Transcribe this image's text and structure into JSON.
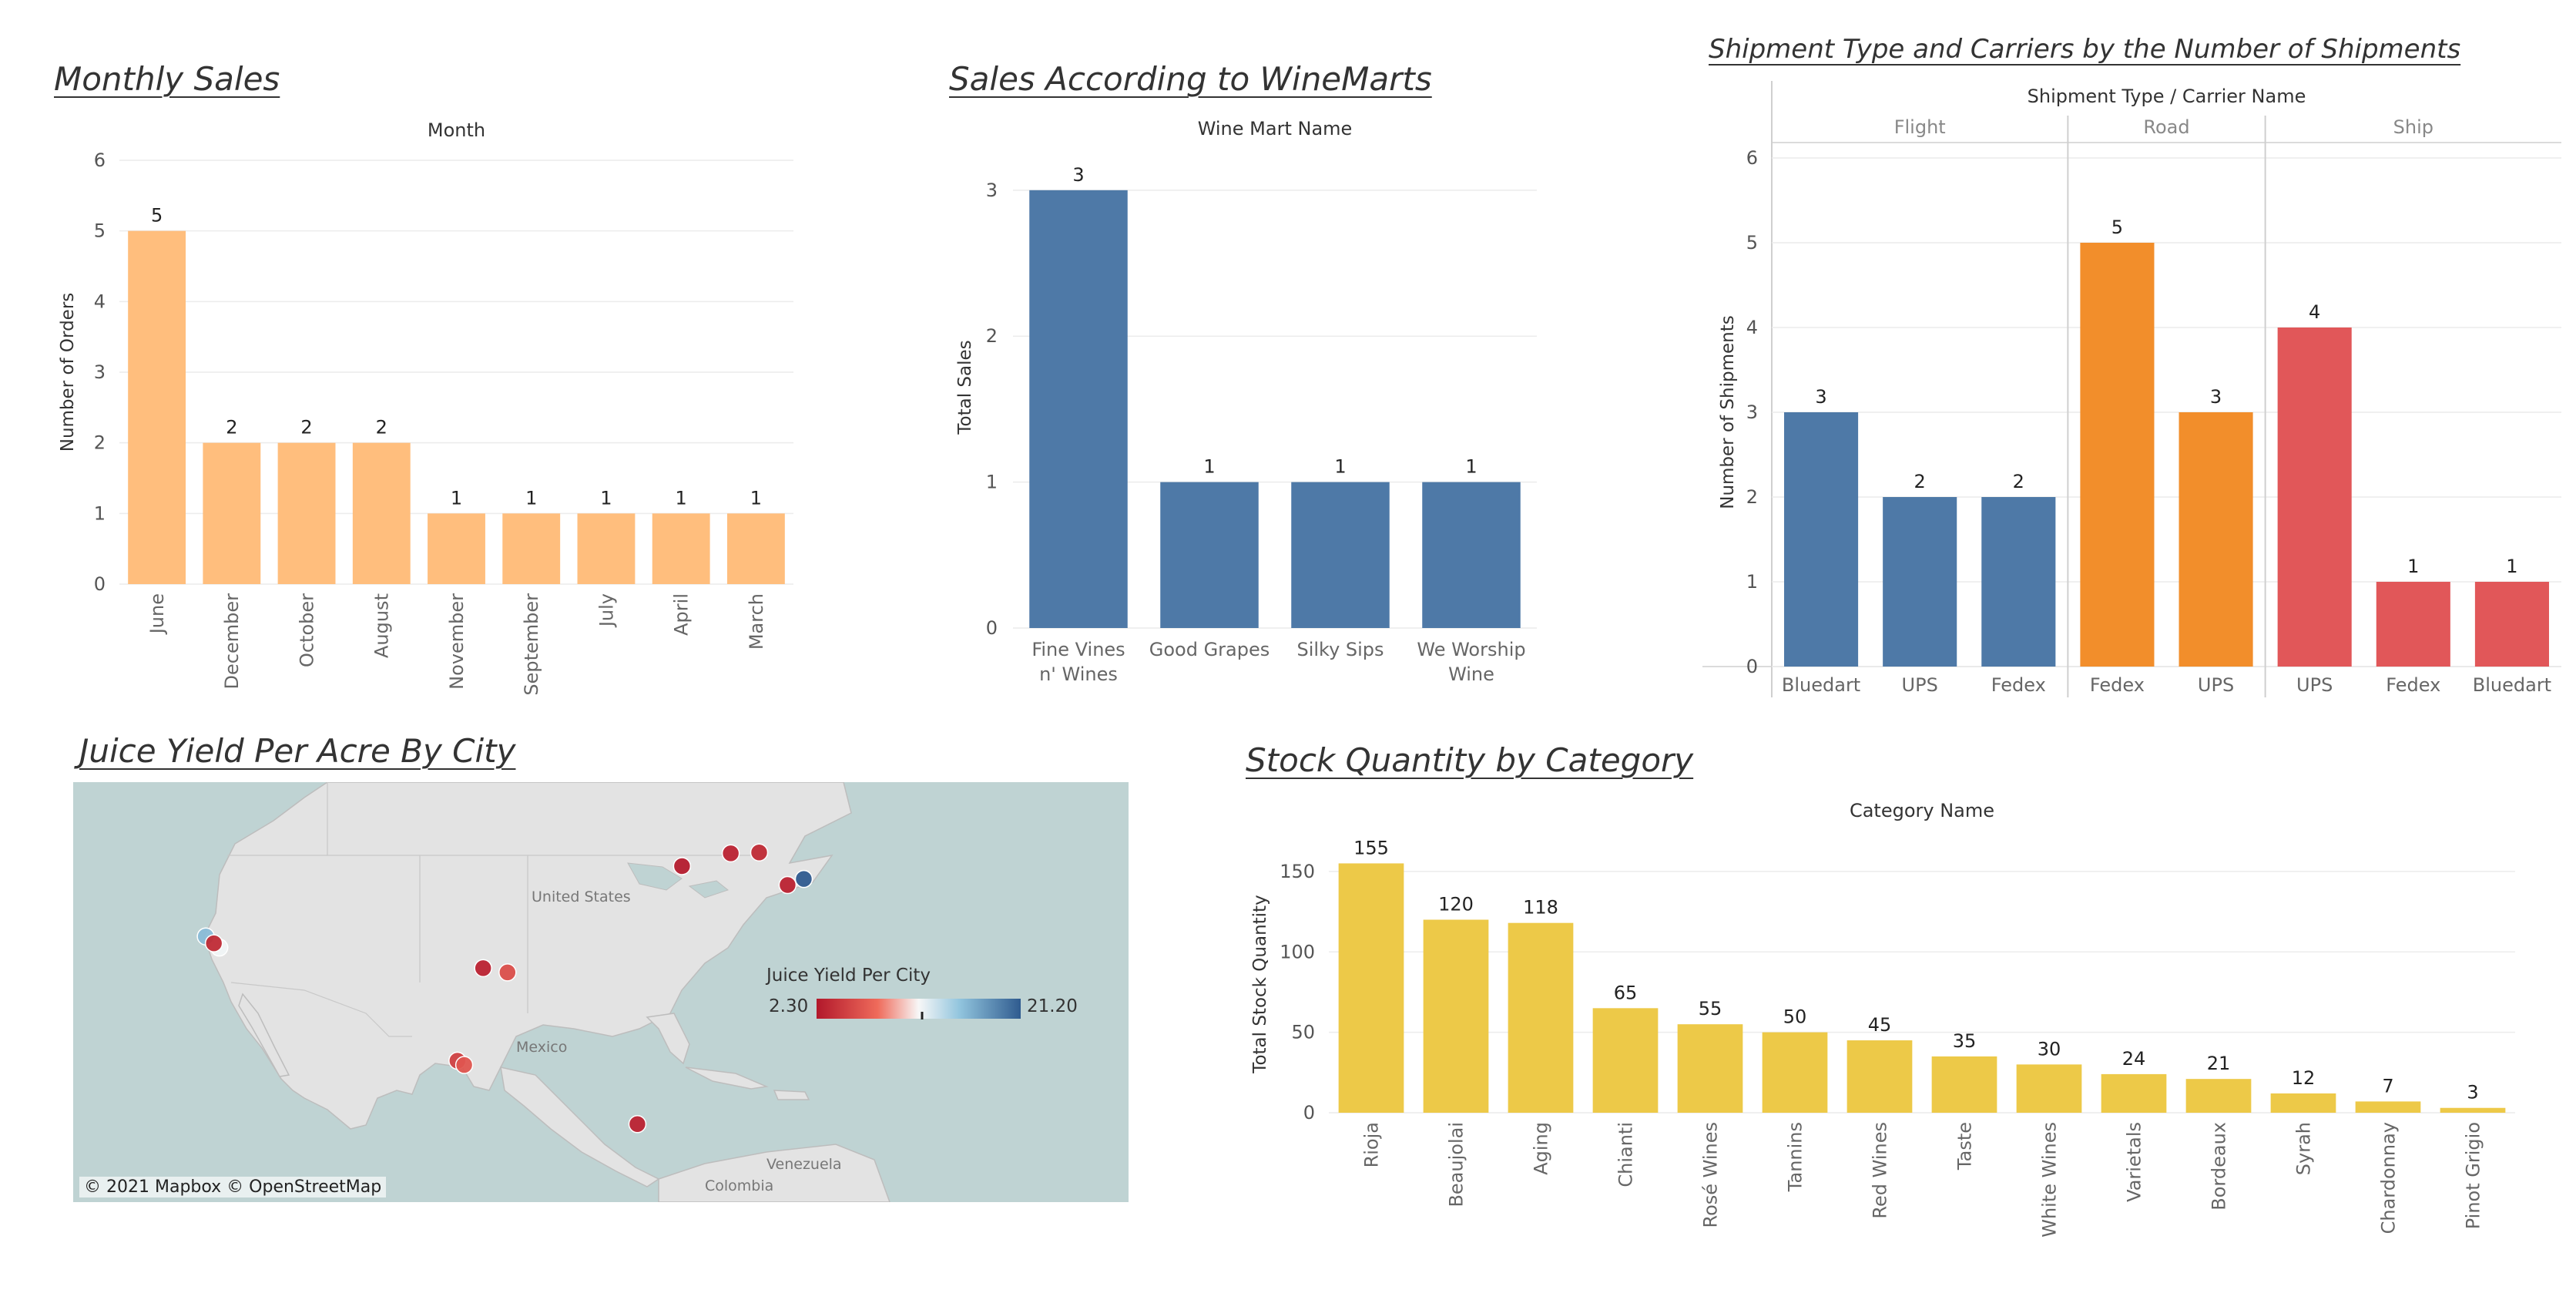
{
  "titles": {
    "monthly": "Monthly Sales",
    "winemarts": "Sales According to WineMarts",
    "shipment": "Shipment Type and Carriers by the Number of Shipments",
    "juice": "Juice Yield Per Acre By City",
    "stock": "Stock Quantity by Category"
  },
  "colors": {
    "orange_light": "#ffbe7d",
    "blue": "#4e79a7",
    "orange": "#f28e2b",
    "red": "#e15759",
    "yellow": "#edc948",
    "sea": "#bfd3d3",
    "land": "#e3e3e3"
  },
  "map": {
    "attribution": "© 2021 Mapbox © OpenStreetMap",
    "labels": [
      "United States",
      "Mexico",
      "Venezuela",
      "Colombia"
    ],
    "legend_title": "Juice Yield Per City",
    "legend_min": "2.30",
    "legend_max": "21.20"
  },
  "chart_data": [
    {
      "id": "monthly",
      "type": "bar",
      "title": "Monthly Sales",
      "header": "Month",
      "ylabel": "Number of Orders",
      "categories": [
        "June",
        "December",
        "October",
        "August",
        "November",
        "September",
        "July",
        "April",
        "March"
      ],
      "values": [
        5,
        2,
        2,
        2,
        1,
        1,
        1,
        1,
        1
      ],
      "ylim": [
        0,
        6
      ],
      "yticks": [
        0,
        1,
        2,
        3,
        4,
        5,
        6
      ],
      "color": "#ffbe7d"
    },
    {
      "id": "winemarts",
      "type": "bar",
      "title": "Sales According to WineMarts",
      "header": "Wine Mart Name",
      "ylabel": "Total Sales",
      "categories": [
        "Fine Vines n' Wines",
        "Good Grapes",
        "Silky Sips",
        "We Worship Wine"
      ],
      "values": [
        3,
        1,
        1,
        1
      ],
      "ylim": [
        0,
        3.3
      ],
      "yticks": [
        0,
        1,
        2,
        3
      ],
      "color": "#4e79a7"
    },
    {
      "id": "shipment",
      "type": "bar",
      "title": "Shipment Type and Carriers by the Number of Shipments",
      "header": "Shipment Type / Carrier Name",
      "ylabel": "Number of Shipments",
      "groups": [
        {
          "name": "Flight",
          "color": "#4e79a7",
          "categories": [
            "Bluedart",
            "UPS",
            "Fedex"
          ],
          "values": [
            3,
            2,
            2
          ]
        },
        {
          "name": "Road",
          "color": "#f28e2b",
          "categories": [
            "Fedex",
            "UPS"
          ],
          "values": [
            5,
            3
          ]
        },
        {
          "name": "Ship",
          "color": "#e15759",
          "categories": [
            "UPS",
            "Fedex",
            "Bluedart"
          ],
          "values": [
            4,
            1,
            1
          ]
        }
      ],
      "ylim": [
        0,
        6
      ],
      "yticks": [
        0,
        1,
        2,
        3,
        4,
        5,
        6
      ]
    },
    {
      "id": "juice",
      "type": "scatter",
      "title": "Juice Yield Per Acre By City",
      "legend": "Juice Yield Per City",
      "range": [
        2.3,
        21.2
      ],
      "points": [
        {
          "lon": -117.2,
          "lat": 32.7,
          "value": 12.0
        },
        {
          "lon": -118.2,
          "lat": 34.0,
          "value": 16.0
        },
        {
          "lon": -117.6,
          "lat": 33.2,
          "value": 3.5
        },
        {
          "lon": -97.7,
          "lat": 30.3,
          "value": 3.0
        },
        {
          "lon": -95.9,
          "lat": 29.8,
          "value": 6.0
        },
        {
          "lon": -99.6,
          "lat": 19.5,
          "value": 5.0
        },
        {
          "lon": -99.1,
          "lat": 19.0,
          "value": 6.5
        },
        {
          "lon": -86.3,
          "lat": 12.1,
          "value": 3.0
        },
        {
          "lon": -83.0,
          "lat": 42.2,
          "value": 2.5
        },
        {
          "lon": -79.4,
          "lat": 43.7,
          "value": 3.0
        },
        {
          "lon": -77.3,
          "lat": 43.8,
          "value": 3.5
        },
        {
          "lon": -75.2,
          "lat": 40.0,
          "value": 3.0
        },
        {
          "lon": -74.0,
          "lat": 40.7,
          "value": 21.2
        }
      ]
    },
    {
      "id": "stock",
      "type": "bar",
      "title": "Stock Quantity by Category",
      "header": "Category Name",
      "ylabel": "Total Stock Quantity",
      "categories": [
        "Rioja",
        "Beaujolai",
        "Aging",
        "Chianti",
        "Rosé Wines",
        "Tannins",
        "Red Wines",
        "Taste",
        "White Wines",
        "Varietals",
        "Bordeaux",
        "Syrah",
        "Chardonnay",
        "Pinot Grigio"
      ],
      "values": [
        155,
        120,
        118,
        65,
        55,
        50,
        45,
        35,
        30,
        24,
        21,
        12,
        7,
        3
      ],
      "ylim": [
        0,
        160
      ],
      "yticks": [
        0,
        50,
        100,
        150
      ],
      "color": "#edc948"
    }
  ]
}
